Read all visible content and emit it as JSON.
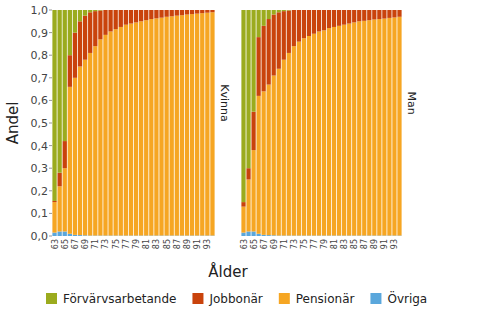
{
  "chart_data": {
    "type": "bar",
    "stacked": true,
    "xlabel": "Ålder",
    "ylabel": "Andel",
    "ylim": [
      0,
      1
    ],
    "yticks": [
      {
        "value": 0,
        "label": "0,0"
      },
      {
        "value": 0.1,
        "label": "0,1"
      },
      {
        "value": 0.2,
        "label": "0,2"
      },
      {
        "value": 0.3,
        "label": "0,3"
      },
      {
        "value": 0.4,
        "label": "0,4"
      },
      {
        "value": 0.5,
        "label": "0,5"
      },
      {
        "value": 0.6,
        "label": "0,6"
      },
      {
        "value": 0.7,
        "label": "0,7"
      },
      {
        "value": 0.8,
        "label": "0,8"
      },
      {
        "value": 0.9,
        "label": "0,9"
      },
      {
        "value": 1,
        "label": "1,0"
      }
    ],
    "categories": [
      "63",
      null,
      "65",
      null,
      "67",
      null,
      "69",
      null,
      "71",
      null,
      "73",
      null,
      "75",
      null,
      "77",
      null,
      "79",
      null,
      "81",
      null,
      "83",
      null,
      "85",
      null,
      "87",
      null,
      "89",
      null,
      "91",
      null,
      "93",
      null
    ],
    "series": [
      {
        "name": "Förvärvsarbetande",
        "color": "#9bab1e"
      },
      {
        "name": "Jobbonär",
        "color": "#c9430c"
      },
      {
        "name": "Pensionär",
        "color": "#f6a623"
      },
      {
        "name": "Övriga",
        "color": "#5aa7dc"
      }
    ],
    "panels": [
      {
        "title": "Kvinna",
        "series": [
          {
            "values": [
              0.845,
              0.72,
              0.58,
              0.2,
              0.1,
              0.05,
              0.025,
              0.01,
              0.005,
              0.002,
              0,
              0,
              0,
              0,
              0,
              0,
              0,
              0,
              0,
              0,
              0,
              0,
              0,
              0,
              0,
              0,
              0,
              0,
              0,
              0,
              0,
              0
            ]
          },
          {
            "values": [
              0.005,
              0.06,
              0.12,
              0.14,
              0.2,
              0.2,
              0.195,
              0.18,
              0.155,
              0.128,
              0.11,
              0.095,
              0.085,
              0.075,
              0.065,
              0.06,
              0.055,
              0.05,
              0.045,
              0.04,
              0.037,
              0.034,
              0.03,
              0.028,
              0.025,
              0.023,
              0.02,
              0.018,
              0.016,
              0.014,
              0.012,
              0.01
            ]
          },
          {
            "values": [
              0.135,
              0.2,
              0.28,
              0.65,
              0.695,
              0.746,
              0.777,
              0.808,
              0.838,
              0.868,
              0.888,
              0.903,
              0.913,
              0.923,
              0.933,
              0.938,
              0.943,
              0.948,
              0.953,
              0.958,
              0.961,
              0.964,
              0.968,
              0.97,
              0.973,
              0.975,
              0.978,
              0.98,
              0.982,
              0.984,
              0.986,
              0.988
            ]
          },
          {
            "values": [
              0.015,
              0.02,
              0.02,
              0.01,
              0.005,
              0.004,
              0.003,
              0.002,
              0.002,
              0.002,
              0.002,
              0.002,
              0.002,
              0.002,
              0.002,
              0.002,
              0.002,
              0.002,
              0.002,
              0.002,
              0.002,
              0.002,
              0.002,
              0.002,
              0.002,
              0.002,
              0.002,
              0.002,
              0.002,
              0.002,
              0.002,
              0.002
            ]
          }
        ]
      },
      {
        "title": "Man",
        "series": [
          {
            "values": [
              0.85,
              0.7,
              0.45,
              0.12,
              0.07,
              0.04,
              0.02,
              0.01,
              0.005,
              0.002,
              0,
              0,
              0,
              0,
              0,
              0,
              0,
              0,
              0,
              0,
              0,
              0,
              0,
              0,
              0,
              0,
              0,
              0,
              0,
              0,
              0,
              0
            ]
          },
          {
            "values": [
              0.02,
              0.05,
              0.17,
              0.26,
              0.29,
              0.29,
              0.27,
              0.25,
              0.215,
              0.188,
              0.16,
              0.14,
              0.125,
              0.115,
              0.105,
              0.095,
              0.09,
              0.08,
              0.075,
              0.07,
              0.065,
              0.06,
              0.055,
              0.05,
              0.048,
              0.045,
              0.042,
              0.04,
              0.038,
              0.035,
              0.033,
              0.03
            ]
          },
          {
            "values": [
              0.115,
              0.23,
              0.36,
              0.61,
              0.635,
              0.666,
              0.707,
              0.738,
              0.778,
              0.808,
              0.838,
              0.858,
              0.873,
              0.883,
              0.893,
              0.903,
              0.908,
              0.918,
              0.923,
              0.928,
              0.933,
              0.938,
              0.943,
              0.948,
              0.95,
              0.953,
              0.956,
              0.958,
              0.96,
              0.963,
              0.965,
              0.968
            ]
          },
          {
            "values": [
              0.015,
              0.02,
              0.02,
              0.01,
              0.005,
              0.004,
              0.003,
              0.002,
              0.002,
              0.002,
              0.002,
              0.002,
              0.002,
              0.002,
              0.002,
              0.002,
              0.002,
              0.002,
              0.002,
              0.002,
              0.002,
              0.002,
              0.002,
              0.002,
              0.002,
              0.002,
              0.002,
              0.002,
              0.002,
              0.002,
              0.002,
              0.002
            ]
          }
        ]
      }
    ]
  }
}
